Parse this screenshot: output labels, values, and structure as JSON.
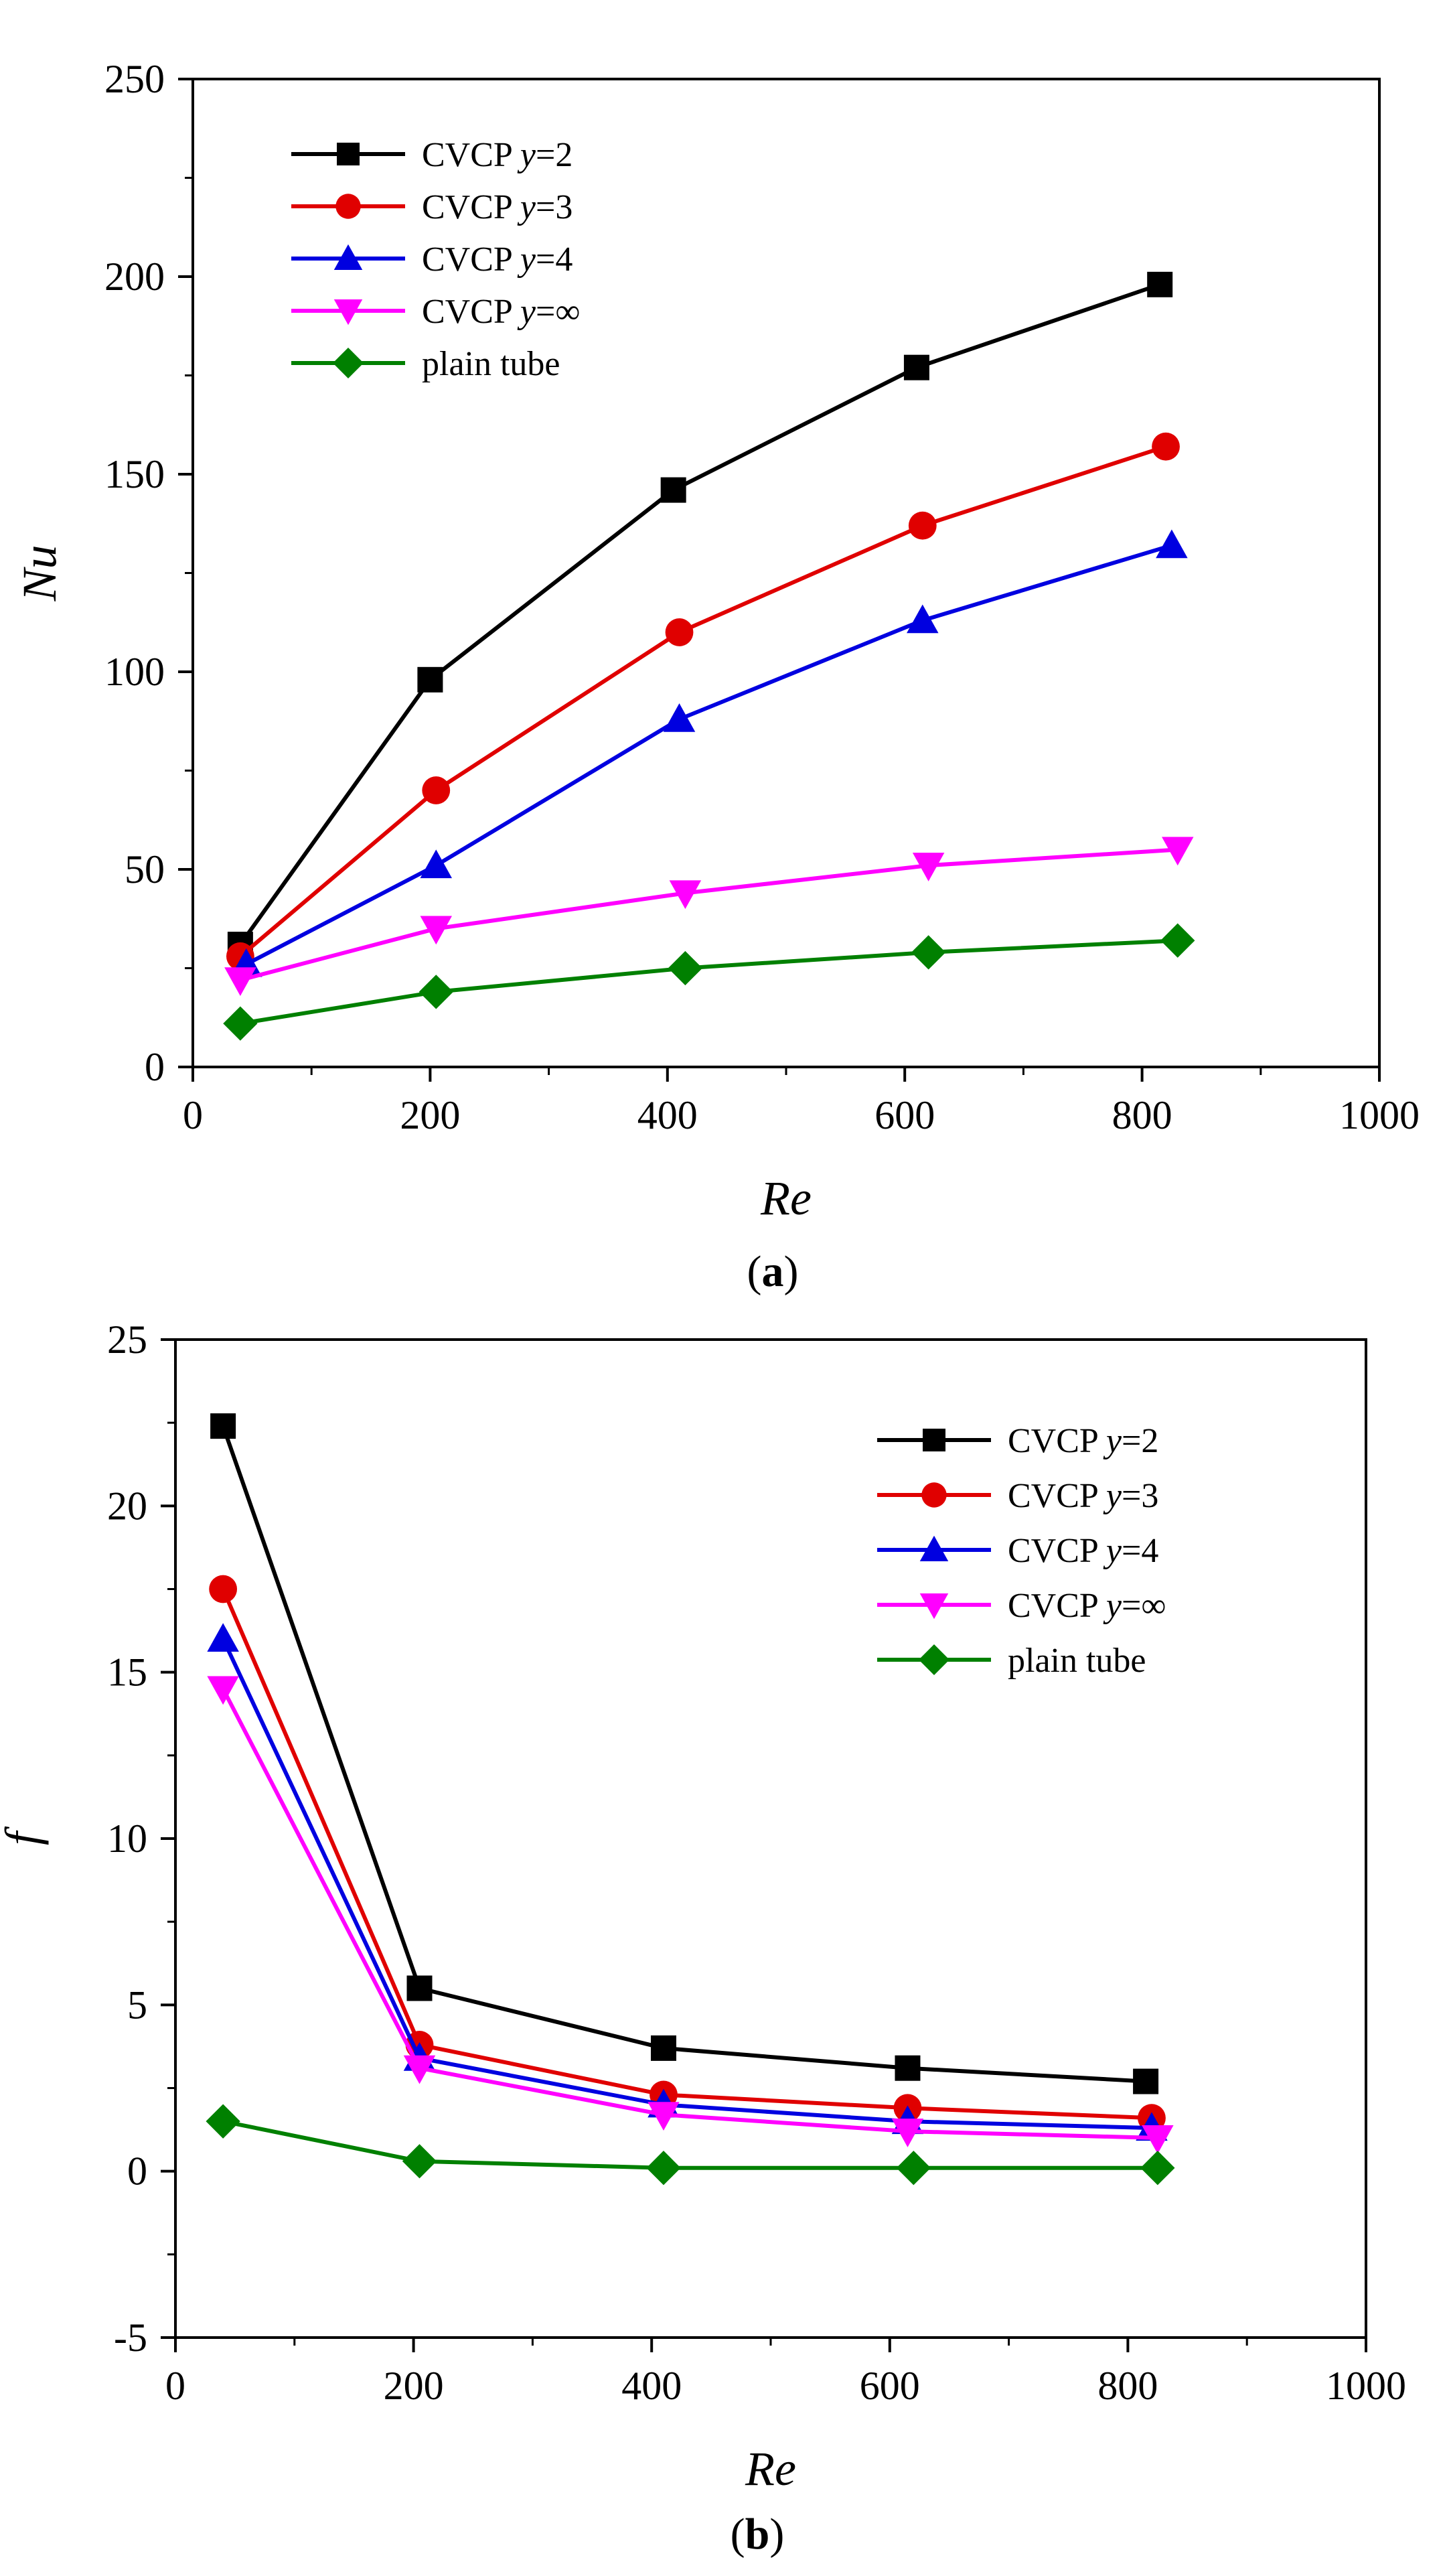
{
  "chart_data": [
    {
      "type": "line",
      "panel_label": "a",
      "xlabel": "Re",
      "ylabel": "Nu",
      "xlim": [
        0,
        1000
      ],
      "ylim": [
        0,
        250
      ],
      "xticks": [
        0,
        200,
        400,
        600,
        800,
        1000
      ],
      "yticks": [
        0,
        50,
        100,
        150,
        200,
        250
      ],
      "legend_position": "top-left",
      "series": [
        {
          "name": "CVCP y=2",
          "prefix": "CVCP ",
          "var": "y",
          "suffix": "=2",
          "marker": "square",
          "color": "#000000",
          "x": [
            40,
            200,
            405,
            610,
            815
          ],
          "y": [
            31,
            98,
            146,
            177,
            198
          ]
        },
        {
          "name": "CVCP y=3",
          "prefix": "CVCP ",
          "var": "y",
          "suffix": "=3",
          "marker": "circle",
          "color": "#e00000",
          "x": [
            40,
            205,
            410,
            615,
            820
          ],
          "y": [
            28,
            70,
            110,
            137,
            157
          ]
        },
        {
          "name": "CVCP y=4",
          "prefix": "CVCP ",
          "var": "y",
          "suffix": "=4",
          "marker": "triangle-up",
          "color": "#0000e0",
          "x": [
            45,
            205,
            410,
            615,
            825
          ],
          "y": [
            26,
            51,
            88,
            113,
            132
          ]
        },
        {
          "name": "CVCP y=∞",
          "prefix": "CVCP ",
          "var": "y",
          "suffix": "=∞",
          "marker": "triangle-down",
          "color": "#ff00ff",
          "x": [
            40,
            205,
            415,
            620,
            830
          ],
          "y": [
            22,
            35,
            44,
            51,
            55
          ]
        },
        {
          "name": "plain tube",
          "prefix": "plain tube",
          "var": "",
          "suffix": "",
          "marker": "diamond",
          "color": "#008000",
          "x": [
            40,
            205,
            415,
            620,
            830
          ],
          "y": [
            11,
            19,
            25,
            29,
            32
          ]
        }
      ]
    },
    {
      "type": "line",
      "panel_label": "b",
      "xlabel": "Re",
      "ylabel": "f",
      "xlim": [
        0,
        1000
      ],
      "ylim": [
        -5,
        25
      ],
      "xticks": [
        0,
        200,
        400,
        600,
        800,
        1000
      ],
      "yticks": [
        -5,
        0,
        5,
        10,
        15,
        20,
        25
      ],
      "legend_position": "top-right",
      "series": [
        {
          "name": "CVCP y=2",
          "prefix": "CVCP ",
          "var": "y",
          "suffix": "=2",
          "marker": "square",
          "color": "#000000",
          "x": [
            40,
            205,
            410,
            615,
            815
          ],
          "y": [
            22.4,
            5.5,
            3.7,
            3.1,
            2.7
          ]
        },
        {
          "name": "CVCP y=3",
          "prefix": "CVCP ",
          "var": "y",
          "suffix": "=3",
          "marker": "circle",
          "color": "#e00000",
          "x": [
            40,
            205,
            410,
            615,
            820
          ],
          "y": [
            17.5,
            3.8,
            2.3,
            1.9,
            1.6
          ]
        },
        {
          "name": "CVCP y=4",
          "prefix": "CVCP ",
          "var": "y",
          "suffix": "=4",
          "marker": "triangle-up",
          "color": "#0000e0",
          "x": [
            40,
            205,
            410,
            615,
            820
          ],
          "y": [
            16.0,
            3.4,
            2.0,
            1.5,
            1.3
          ]
        },
        {
          "name": "CVCP y=∞",
          "prefix": "CVCP ",
          "var": "y",
          "suffix": "=∞",
          "marker": "triangle-down",
          "color": "#ff00ff",
          "x": [
            40,
            205,
            410,
            615,
            825
          ],
          "y": [
            14.5,
            3.1,
            1.7,
            1.2,
            1.0
          ]
        },
        {
          "name": "plain tube",
          "prefix": "plain tube",
          "var": "",
          "suffix": "",
          "marker": "diamond",
          "color": "#008000",
          "x": [
            40,
            205,
            410,
            620,
            825
          ],
          "y": [
            1.5,
            0.3,
            0.1,
            0.1,
            0.1
          ]
        }
      ]
    }
  ]
}
